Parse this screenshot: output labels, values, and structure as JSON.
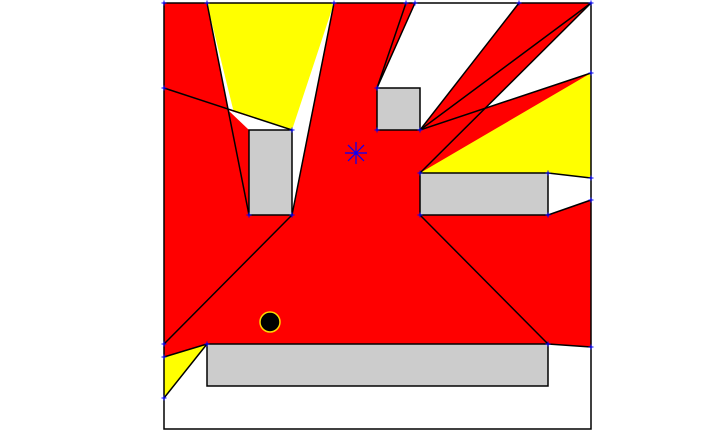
{
  "diagram": {
    "type": "visibility-polygon",
    "colors": {
      "background": "#ffffff",
      "visible_region": "#ff0000",
      "secondary_region": "#ffff00",
      "obstacle": "#cccccc",
      "outline": "#000000",
      "vertex_marker": "#0000ff",
      "viewpoint": "#0000ff",
      "agent": "#000000",
      "agent_ring": "#ffd700"
    }
  }
}
